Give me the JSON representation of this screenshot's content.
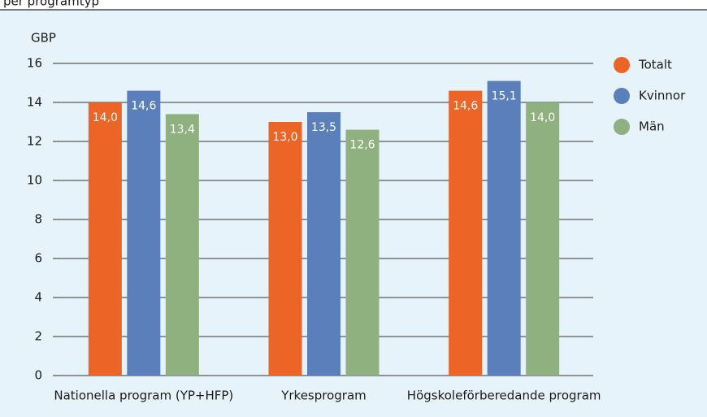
{
  "chart_data": {
    "type": "bar",
    "title": "per programtyp",
    "y_label": "GBP",
    "categories": [
      "Nationella program (YP+HFP)",
      "Yrkesprogram",
      "Högskoleförberedande program"
    ],
    "series": [
      {
        "name": "Totalt",
        "color": "#ec6527",
        "values": [
          14.0,
          13.0,
          14.6
        ],
        "value_labels": [
          "14,0",
          "13,0",
          "14,6"
        ]
      },
      {
        "name": "Kvinnor",
        "color": "#5b7fbb",
        "values": [
          14.6,
          13.5,
          15.1
        ],
        "value_labels": [
          "14,6",
          "13,5",
          "15,1"
        ]
      },
      {
        "name": "Män",
        "color": "#8fb07f",
        "values": [
          13.4,
          12.6,
          14.0
        ],
        "value_labels": [
          "13,4",
          "12,6",
          "14,0"
        ]
      }
    ],
    "ylim": [
      0,
      16
    ],
    "yticks": [
      0,
      2,
      4,
      6,
      8,
      10,
      12,
      14,
      16
    ],
    "grid": true,
    "legend": "right"
  }
}
